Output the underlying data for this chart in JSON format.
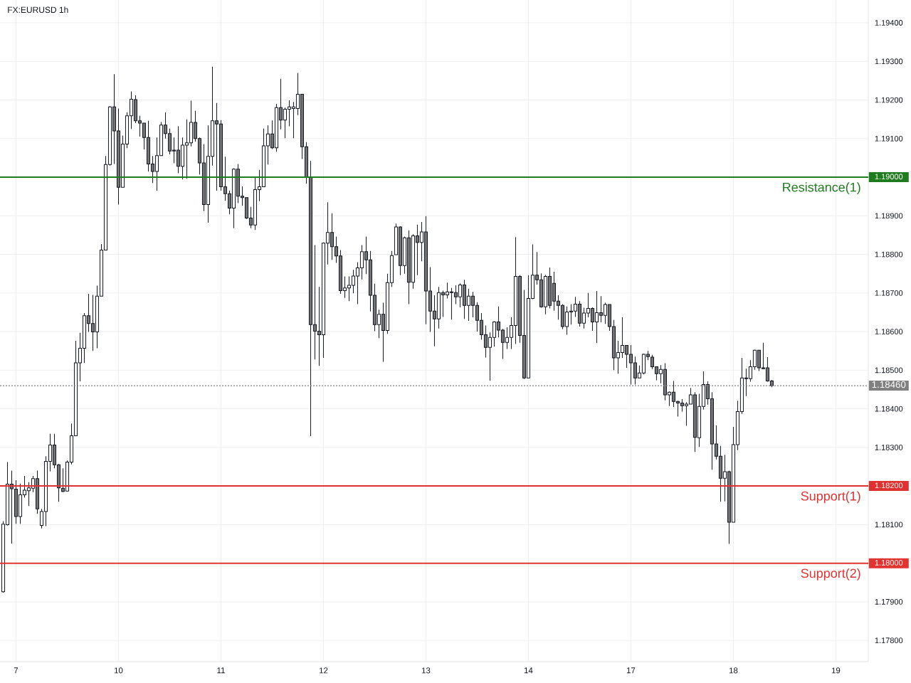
{
  "chart_data": {
    "type": "candlestick",
    "title": "FX:EURUSD 1h",
    "categories": [
      null,
      null,
      null,
      "7",
      null,
      null,
      null,
      null,
      null,
      null,
      null,
      null,
      null,
      null,
      null,
      null,
      null,
      null,
      null,
      null,
      null,
      null,
      null,
      null,
      null,
      null,
      null,
      "10",
      null,
      null,
      null,
      null,
      null,
      null,
      null,
      null,
      null,
      null,
      null,
      null,
      null,
      null,
      null,
      null,
      null,
      null,
      null,
      null,
      null,
      null,
      null,
      "11",
      null,
      null,
      null,
      null,
      null,
      null,
      null,
      null,
      null,
      null,
      null,
      null,
      null,
      null,
      null,
      null,
      null,
      null,
      null,
      null,
      null,
      null,
      null,
      "12",
      null,
      null,
      null,
      null,
      null,
      null,
      null,
      null,
      null,
      null,
      null,
      null,
      null,
      null,
      null,
      null,
      null,
      null,
      null,
      null,
      null,
      null,
      null,
      "13",
      null,
      null,
      null,
      null,
      null,
      null,
      null,
      null,
      null,
      null,
      null,
      null,
      null,
      null,
      null,
      null,
      null,
      null,
      null,
      null,
      null,
      null,
      null,
      "14",
      null,
      null,
      null,
      null,
      null,
      null,
      null,
      null,
      null,
      null,
      null,
      null,
      null,
      null,
      null,
      null,
      null,
      null,
      null,
      null,
      null,
      null,
      null,
      "17",
      null,
      null,
      null,
      null,
      null,
      null,
      null,
      null,
      null,
      null,
      null,
      null,
      null,
      null,
      null,
      null,
      null,
      null,
      null,
      null,
      null,
      null,
      null,
      "18",
      null,
      null,
      null,
      null,
      null,
      null,
      null,
      null,
      null,
      null,
      null,
      null,
      null,
      null,
      null,
      null,
      null,
      null,
      null,
      null,
      null,
      null,
      null,
      "19"
    ],
    "ohlc": [
      [
        1.17926,
        1.18109,
        1.17924,
        1.18101
      ],
      [
        1.181,
        1.18262,
        1.18098,
        1.18205
      ],
      [
        1.18205,
        1.1824,
        1.18051,
        1.18193
      ],
      [
        1.18192,
        1.18215,
        1.18102,
        1.18121
      ],
      [
        1.18121,
        1.18206,
        1.18102,
        1.18177
      ],
      [
        1.18177,
        1.18226,
        1.1817,
        1.18189
      ],
      [
        1.18188,
        1.1821,
        1.18148,
        1.18195
      ],
      [
        1.18194,
        1.18226,
        1.18184,
        1.18219
      ],
      [
        1.18219,
        1.1824,
        1.18128,
        1.18141
      ],
      [
        1.18098,
        1.18141,
        1.1809,
        1.18134
      ],
      [
        1.18134,
        1.18277,
        1.18096,
        1.18264
      ],
      [
        1.18264,
        1.18335,
        1.18238,
        1.18306
      ],
      [
        1.18306,
        1.18335,
        1.18246,
        1.18255
      ],
      [
        1.18255,
        1.18257,
        1.18159,
        1.18195
      ],
      [
        1.18194,
        1.18246,
        1.18184,
        1.18186
      ],
      [
        1.18187,
        1.18266,
        1.18186,
        1.18262
      ],
      [
        1.18262,
        1.18362,
        1.18256,
        1.1833
      ],
      [
        1.1833,
        1.18576,
        1.1833,
        1.18519
      ],
      [
        1.18519,
        1.18597,
        1.18471,
        1.18557
      ],
      [
        1.18557,
        1.18648,
        1.18519,
        1.18641
      ],
      [
        1.18641,
        1.18698,
        1.18599,
        1.18621
      ],
      [
        1.18621,
        1.18695,
        1.1855,
        1.18599
      ],
      [
        1.18599,
        1.18719,
        1.18557,
        1.18692
      ],
      [
        1.18692,
        1.18827,
        1.18692,
        1.18811
      ],
      [
        1.18811,
        1.19055,
        1.18811,
        1.19033
      ],
      [
        1.19033,
        1.19184,
        1.1903,
        1.19182
      ],
      [
        1.19182,
        1.19267,
        1.19034,
        1.1912
      ],
      [
        1.1912,
        1.19178,
        1.18929,
        1.18974
      ],
      [
        1.18974,
        1.19108,
        1.18974,
        1.19086
      ],
      [
        1.19086,
        1.19168,
        1.19075,
        1.19159
      ],
      [
        1.19159,
        1.19222,
        1.19125,
        1.19202
      ],
      [
        1.19201,
        1.19212,
        1.1914,
        1.19146
      ],
      [
        1.19146,
        1.19159,
        1.19105,
        1.1914
      ],
      [
        1.1914,
        1.1914,
        1.19072,
        1.19103
      ],
      [
        1.19103,
        1.19146,
        1.19015,
        1.19034
      ],
      [
        1.19034,
        1.19055,
        1.18985,
        1.19015
      ],
      [
        1.19015,
        1.19103,
        1.18965,
        1.19056
      ],
      [
        1.19056,
        1.19143,
        1.19056,
        1.19135
      ],
      [
        1.19135,
        1.19168,
        1.191,
        1.19113
      ],
      [
        1.19113,
        1.19126,
        1.19059,
        1.19068
      ],
      [
        1.1907,
        1.19103,
        1.19036,
        1.19068
      ],
      [
        1.1907,
        1.19132,
        1.1901,
        1.19028
      ],
      [
        1.19028,
        1.19103,
        1.18994,
        1.19083
      ],
      [
        1.19083,
        1.1915,
        1.18996,
        1.19089
      ],
      [
        1.19089,
        1.19198,
        1.1908,
        1.19142
      ],
      [
        1.19142,
        1.19172,
        1.19092,
        1.191
      ],
      [
        1.191,
        1.19103,
        1.19007,
        1.19037
      ],
      [
        1.19037,
        1.19086,
        1.18912,
        1.18929
      ],
      [
        1.18929,
        1.19134,
        1.18882,
        1.19054
      ],
      [
        1.19054,
        1.19286,
        1.1903,
        1.19146
      ],
      [
        1.19146,
        1.19192,
        1.18965,
        1.19138
      ],
      [
        1.19138,
        1.19148,
        1.18965,
        1.18975
      ],
      [
        1.18975,
        1.19053,
        1.18939,
        1.18957
      ],
      [
        1.18957,
        1.18965,
        1.18904,
        1.1892
      ],
      [
        1.1892,
        1.19023,
        1.18868,
        1.19021
      ],
      [
        1.19021,
        1.19034,
        1.18933,
        1.18951
      ],
      [
        1.18951,
        1.18976,
        1.18926,
        1.18947
      ],
      [
        1.18947,
        1.18947,
        1.18892,
        1.18894
      ],
      [
        1.18894,
        1.18923,
        1.18868,
        1.18876
      ],
      [
        1.18876,
        1.19002,
        1.18863,
        1.18968
      ],
      [
        1.18968,
        1.19019,
        1.18938,
        1.18975
      ],
      [
        1.18975,
        1.19126,
        1.18975,
        1.19081
      ],
      [
        1.19081,
        1.19134,
        1.19033,
        1.19112
      ],
      [
        1.19112,
        1.19147,
        1.19073,
        1.19076
      ],
      [
        1.19076,
        1.1919,
        1.19066,
        1.1918
      ],
      [
        1.1918,
        1.19255,
        1.19124,
        1.19148
      ],
      [
        1.19148,
        1.1918,
        1.19101,
        1.19176
      ],
      [
        1.19176,
        1.19199,
        1.19132,
        1.19182
      ],
      [
        1.19178,
        1.19195,
        1.19101,
        1.19182
      ],
      [
        1.19178,
        1.1927,
        1.19161,
        1.19215
      ],
      [
        1.19215,
        1.19215,
        1.19047,
        1.19079
      ],
      [
        1.19079,
        1.19091,
        1.18983,
        1.19001
      ],
      [
        1.19001,
        1.19042,
        1.18329,
        1.18618
      ],
      [
        1.18618,
        1.18824,
        1.18528,
        1.18601
      ],
      [
        1.18601,
        1.18716,
        1.18511,
        1.18592
      ],
      [
        1.18592,
        1.18831,
        1.18532,
        1.18829
      ],
      [
        1.18829,
        1.18935,
        1.18774,
        1.18857
      ],
      [
        1.18857,
        1.18906,
        1.18786,
        1.1882
      ],
      [
        1.1882,
        1.18846,
        1.18778,
        1.18796
      ],
      [
        1.18796,
        1.18811,
        1.18698,
        1.18706
      ],
      [
        1.18706,
        1.18743,
        1.18687,
        1.18713
      ],
      [
        1.18713,
        1.18743,
        1.18679,
        1.1872
      ],
      [
        1.1872,
        1.1876,
        1.18699,
        1.18744
      ],
      [
        1.18744,
        1.1878,
        1.18671,
        1.18765
      ],
      [
        1.18765,
        1.18824,
        1.18735,
        1.18807
      ],
      [
        1.18807,
        1.18846,
        1.18749,
        1.18786
      ],
      [
        1.18786,
        1.18809,
        1.18652,
        1.18694
      ],
      [
        1.18694,
        1.18724,
        1.18601,
        1.18618
      ],
      [
        1.18618,
        1.18657,
        1.18583,
        1.18645
      ],
      [
        1.18645,
        1.18675,
        1.18522,
        1.18603
      ],
      [
        1.18603,
        1.1875,
        1.18594,
        1.18727
      ],
      [
        1.18727,
        1.18809,
        1.18716,
        1.18797
      ],
      [
        1.18799,
        1.1888,
        1.18799,
        1.18871
      ],
      [
        1.18871,
        1.18873,
        1.18746,
        1.18771
      ],
      [
        1.18771,
        1.18846,
        1.1875,
        1.18843
      ],
      [
        1.18843,
        1.18862,
        1.18671,
        1.18728
      ],
      [
        1.18728,
        1.18852,
        1.18711,
        1.18848
      ],
      [
        1.18848,
        1.18877,
        1.18746,
        1.18831
      ],
      [
        1.18831,
        1.18884,
        1.18782,
        1.18858
      ],
      [
        1.18858,
        1.18899,
        1.18619,
        1.18705
      ],
      [
        1.18705,
        1.18767,
        1.18599,
        1.18653
      ],
      [
        1.18653,
        1.18694,
        1.18562,
        1.18633
      ],
      [
        1.18633,
        1.18716,
        1.18608,
        1.18701
      ],
      [
        1.18701,
        1.18706,
        1.18638,
        1.18695
      ],
      [
        1.18695,
        1.18727,
        1.18686,
        1.18703
      ],
      [
        1.18703,
        1.18713,
        1.18631,
        1.18701
      ],
      [
        1.18701,
        1.1872,
        1.18671,
        1.1869
      ],
      [
        1.1869,
        1.18725,
        1.18663,
        1.18721
      ],
      [
        1.18721,
        1.18734,
        1.18633,
        1.18668
      ],
      [
        1.18668,
        1.18711,
        1.18628,
        1.18692
      ],
      [
        1.18692,
        1.18703,
        1.18637,
        1.18668
      ],
      [
        1.18668,
        1.18676,
        1.186,
        1.18629
      ],
      [
        1.18629,
        1.18648,
        1.18579,
        1.18592
      ],
      [
        1.18592,
        1.18616,
        1.18533,
        1.18559
      ],
      [
        1.18559,
        1.18598,
        1.18473,
        1.18585
      ],
      [
        1.18585,
        1.18627,
        1.18561,
        1.18625
      ],
      [
        1.18625,
        1.18665,
        1.18585,
        1.18604
      ],
      [
        1.18604,
        1.18607,
        1.18529,
        1.18572
      ],
      [
        1.18572,
        1.18611,
        1.18555,
        1.18585
      ],
      [
        1.18585,
        1.18637,
        1.18555,
        1.18616
      ],
      [
        1.18616,
        1.18845,
        1.18568,
        1.18743
      ],
      [
        1.18743,
        1.18746,
        1.18571,
        1.1859
      ],
      [
        1.1859,
        1.18708,
        1.18477,
        1.1848
      ],
      [
        1.1848,
        1.18746,
        1.1848,
        1.18686
      ],
      [
        1.18686,
        1.18826,
        1.18684,
        1.18746
      ],
      [
        1.18746,
        1.18806,
        1.18722,
        1.18734
      ],
      [
        1.18734,
        1.18751,
        1.18662,
        1.18664
      ],
      [
        1.18664,
        1.18747,
        1.18645,
        1.18743
      ],
      [
        1.18743,
        1.18766,
        1.1866,
        1.18668
      ],
      [
        1.18725,
        1.18755,
        1.18654,
        1.18679
      ],
      [
        1.18679,
        1.18694,
        1.18631,
        1.18668
      ],
      [
        1.18668,
        1.18671,
        1.18606,
        1.18613
      ],
      [
        1.18613,
        1.18665,
        1.18592,
        1.18651
      ],
      [
        1.18651,
        1.18671,
        1.18618,
        1.18653
      ],
      [
        1.18653,
        1.1869,
        1.18638,
        1.18671
      ],
      [
        1.18671,
        1.18679,
        1.18613,
        1.18622
      ],
      [
        1.18622,
        1.18662,
        1.18608,
        1.18648
      ],
      [
        1.18648,
        1.187,
        1.18637,
        1.1866
      ],
      [
        1.1866,
        1.18663,
        1.18602,
        1.18625
      ],
      [
        1.18625,
        1.18705,
        1.1857,
        1.18649
      ],
      [
        1.18649,
        1.18692,
        1.18624,
        1.18642
      ],
      [
        1.18642,
        1.18675,
        1.1862,
        1.1867
      ],
      [
        1.1867,
        1.1867,
        1.18602,
        1.18613
      ],
      [
        1.18613,
        1.1863,
        1.185,
        1.18532
      ],
      [
        1.18532,
        1.18576,
        1.18491,
        1.18546
      ],
      [
        1.18546,
        1.18637,
        1.18532,
        1.18564
      ],
      [
        1.18564,
        1.18564,
        1.18506,
        1.18541
      ],
      [
        1.18541,
        1.18565,
        1.18463,
        1.18519
      ],
      [
        1.18519,
        1.18535,
        1.18463,
        1.1848
      ],
      [
        1.1848,
        1.18512,
        1.1848,
        1.18493
      ],
      [
        1.18493,
        1.18543,
        1.18489,
        1.18541
      ],
      [
        1.18541,
        1.1855,
        1.18526,
        1.18535
      ],
      [
        1.18534,
        1.1854,
        1.18503,
        1.18509
      ],
      [
        1.18509,
        1.18509,
        1.18474,
        1.18491
      ],
      [
        1.18491,
        1.18513,
        1.18466,
        1.18502
      ],
      [
        1.18502,
        1.18518,
        1.18422,
        1.18436
      ],
      [
        1.18436,
        1.18445,
        1.18407,
        1.18443
      ],
      [
        1.18443,
        1.18472,
        1.18405,
        1.18419
      ],
      [
        1.18419,
        1.18421,
        1.1838,
        1.18415
      ],
      [
        1.18415,
        1.18425,
        1.18393,
        1.18408
      ],
      [
        1.18408,
        1.18417,
        1.18356,
        1.18412
      ],
      [
        1.18412,
        1.18454,
        1.18412,
        1.18436
      ],
      [
        1.18436,
        1.18443,
        1.18288,
        1.18326
      ],
      [
        1.18325,
        1.18439,
        1.18301,
        1.18406
      ],
      [
        1.18406,
        1.18497,
        1.18398,
        1.18463
      ],
      [
        1.18463,
        1.18471,
        1.18411,
        1.18426
      ],
      [
        1.18426,
        1.18443,
        1.18242,
        1.18309
      ],
      [
        1.18309,
        1.18357,
        1.18269,
        1.18277
      ],
      [
        1.18277,
        1.18304,
        1.18159,
        1.1822
      ],
      [
        1.1822,
        1.18281,
        1.1816,
        1.18237
      ],
      [
        1.18237,
        1.1824,
        1.1805,
        1.18106
      ],
      [
        1.18106,
        1.18353,
        1.18106,
        1.18307
      ],
      [
        1.18307,
        1.18421,
        1.18293,
        1.18393
      ],
      [
        1.18393,
        1.18532,
        1.18387,
        1.1848
      ],
      [
        1.1848,
        1.18504,
        1.18433,
        1.18478
      ],
      [
        1.18478,
        1.18526,
        1.1847,
        1.18509
      ],
      [
        1.18509,
        1.18553,
        1.18501,
        1.18552
      ],
      [
        1.18552,
        1.18552,
        1.18498,
        1.18506
      ],
      [
        1.18506,
        1.18571,
        1.18503,
        1.18504
      ],
      [
        1.18506,
        1.18534,
        1.1847,
        1.18472
      ],
      [
        1.18472,
        1.18475,
        1.18456,
        1.1846
      ],
      null,
      null,
      null,
      null,
      null,
      null,
      null,
      null,
      null,
      null,
      null,
      null,
      null,
      null,
      null
    ],
    "colors": [
      "#ffffff",
      "#ffffff",
      "#737373",
      "#737373",
      "#ffffff",
      "#ffffff",
      "#ffffff",
      "#ffffff",
      "#737373",
      "#ffffff",
      "#ffffff",
      "#ffffff",
      "#737373",
      "#737373",
      "#737373",
      "#ffffff",
      "#ffffff",
      "#ffffff",
      "#ffffff",
      "#ffffff",
      "#737373",
      "#737373",
      "#ffffff",
      "#ffffff",
      "#ffffff",
      "#ffffff",
      "#737373",
      "#737373",
      "#ffffff",
      "#ffffff",
      "#ffffff",
      "#737373",
      "#737373",
      "#737373",
      "#737373",
      "#737373",
      "#ffffff",
      "#ffffff",
      "#737373",
      "#737373",
      "#737373",
      "#737373",
      "#ffffff",
      "#ffffff",
      "#ffffff",
      "#737373",
      "#737373",
      "#737373",
      "#ffffff",
      "#ffffff",
      "#737373",
      "#737373",
      "#737373",
      "#737373",
      "#ffffff",
      "#737373",
      "#737373",
      "#737373",
      "#737373",
      "#ffffff",
      "#ffffff",
      "#ffffff",
      "#ffffff",
      "#737373",
      "#ffffff",
      "#737373",
      "#ffffff",
      "#ffffff",
      "#ffffff",
      "#ffffff",
      "#737373",
      "#737373",
      "#737373",
      "#737373",
      "#737373",
      "#ffffff",
      "#ffffff",
      "#737373",
      "#737373",
      "#737373",
      "#ffffff",
      "#ffffff",
      "#ffffff",
      "#ffffff",
      "#ffffff",
      "#737373",
      "#737373",
      "#737373",
      "#ffffff",
      "#737373",
      "#ffffff",
      "#ffffff",
      "#ffffff",
      "#737373",
      "#ffffff",
      "#737373",
      "#ffffff",
      "#737373",
      "#ffffff",
      "#737373",
      "#737373",
      "#737373",
      "#ffffff",
      "#737373",
      "#ffffff",
      "#737373",
      "#737373",
      "#ffffff",
      "#737373",
      "#ffffff",
      "#737373",
      "#737373",
      "#737373",
      "#737373",
      "#ffffff",
      "#ffffff",
      "#737373",
      "#737373",
      "#ffffff",
      "#ffffff",
      "#ffffff",
      "#737373",
      "#737373",
      "#ffffff",
      "#ffffff",
      "#737373",
      "#737373",
      "#ffffff",
      "#737373",
      "#737373",
      "#737373",
      "#737373",
      "#ffffff",
      "#ffffff",
      "#ffffff",
      "#737373",
      "#ffffff",
      "#ffffff",
      "#737373",
      "#ffffff",
      "#737373",
      "#ffffff",
      "#737373",
      "#737373",
      "#ffffff",
      "#ffffff",
      "#737373",
      "#737373",
      "#737373",
      "#ffffff",
      "#ffffff",
      "#737373",
      "#737373",
      "#737373",
      "#ffffff",
      "#737373",
      "#ffffff",
      "#737373",
      "#737373",
      "#737373",
      "#ffffff",
      "#ffffff",
      "#737373",
      "#ffffff",
      "#ffffff",
      "#737373",
      "#737373",
      "#737373",
      "#737373",
      "#ffffff",
      "#737373",
      "#ffffff",
      "#ffffff",
      "#ffffff",
      "#737373",
      "#ffffff",
      "#ffffff",
      "#737373",
      "#737373",
      "#737373",
      "#737373",
      null,
      null,
      null,
      null,
      null,
      null,
      null,
      null,
      null,
      null,
      null,
      null,
      null,
      null,
      null
    ],
    "ylim": [
      1.17745,
      1.19459
    ],
    "yticks": [
      {
        "value": 1.178,
        "label": "1.17800"
      },
      {
        "value": 1.179,
        "label": "1.17900"
      },
      {
        "value": 1.18,
        "label": "1.18000"
      },
      {
        "value": 1.181,
        "label": "1.18100"
      },
      {
        "value": 1.182,
        "label": "1.18200"
      },
      {
        "value": 1.183,
        "label": "1.18300"
      },
      {
        "value": 1.184,
        "label": "1.18400"
      },
      {
        "value": 1.185,
        "label": "1.18500"
      },
      {
        "value": 1.186,
        "label": "1.18600"
      },
      {
        "value": 1.187,
        "label": "1.18700"
      },
      {
        "value": 1.188,
        "label": "1.18800"
      },
      {
        "value": 1.189,
        "label": "1.18900"
      },
      {
        "value": 1.19,
        "label": "1.19000"
      },
      {
        "value": 1.191,
        "label": "1.19100"
      },
      {
        "value": 1.192,
        "label": "1.19200"
      },
      {
        "value": 1.193,
        "label": "1.19300"
      },
      {
        "value": 1.194,
        "label": "1.19400"
      }
    ],
    "ref_lines": [
      {
        "axis": "y",
        "value": 1.19,
        "label": "Resistance(1)",
        "color": "#1e7b1e"
      },
      {
        "axis": "y",
        "value": 1.182,
        "label": "Support(1)",
        "color": "#e0302f"
      },
      {
        "axis": "y",
        "value": 1.18,
        "label": "Support(2)",
        "color": "#e23331"
      },
      {
        "axis": "y",
        "value": 1.1846,
        "label": "1.18460",
        "color": "#808080",
        "line_style": "dotted"
      }
    ],
    "grid": true
  }
}
